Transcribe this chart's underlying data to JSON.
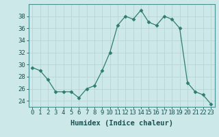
{
  "x": [
    0,
    1,
    2,
    3,
    4,
    5,
    6,
    7,
    8,
    9,
    10,
    11,
    12,
    13,
    14,
    15,
    16,
    17,
    18,
    19,
    20,
    21,
    22,
    23
  ],
  "y": [
    29.5,
    29.0,
    27.5,
    25.5,
    25.5,
    25.5,
    24.5,
    26.0,
    26.5,
    29.0,
    32.0,
    36.5,
    38.0,
    37.5,
    39.0,
    37.0,
    36.5,
    38.0,
    37.5,
    36.0,
    27.0,
    25.5,
    25.0,
    23.5
  ],
  "line_color": "#2e7d6e",
  "marker": "D",
  "marker_size": 2.5,
  "bg_color": "#cde8e8",
  "grid_color": "#b8d4d4",
  "xlabel": "Humidex (Indice chaleur)",
  "ylim": [
    23,
    40
  ],
  "xlim": [
    -0.5,
    23.5
  ],
  "yticks": [
    24,
    26,
    28,
    30,
    32,
    34,
    36,
    38
  ],
  "xticks": [
    0,
    1,
    2,
    3,
    4,
    5,
    6,
    7,
    8,
    9,
    10,
    11,
    12,
    13,
    14,
    15,
    16,
    17,
    18,
    19,
    20,
    21,
    22,
    23
  ],
  "xtick_labels": [
    "0",
    "1",
    "2",
    "3",
    "4",
    "5",
    "6",
    "7",
    "8",
    "9",
    "10",
    "11",
    "12",
    "13",
    "14",
    "15",
    "16",
    "17",
    "18",
    "19",
    "20",
    "21",
    "22",
    "23"
  ],
  "tick_fontsize": 6.5,
  "xlabel_fontsize": 7.5,
  "spine_color": "#4a9090"
}
